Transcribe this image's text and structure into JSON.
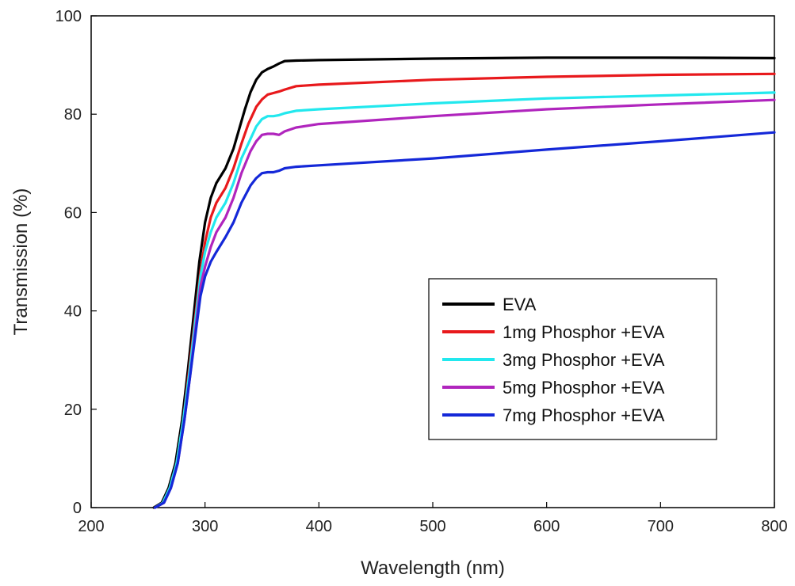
{
  "chart_data": {
    "type": "line",
    "xlabel": "Wavelength (nm)",
    "ylabel": "Transmission (%)",
    "xlim": [
      200,
      800
    ],
    "ylim": [
      0,
      100
    ],
    "xticks": [
      "200",
      "300",
      "400",
      "500",
      "600",
      "700",
      "800"
    ],
    "yticks": [
      "0",
      "20",
      "40",
      "60",
      "80",
      "100"
    ],
    "grid": false,
    "legend_position": "center-right",
    "series": [
      {
        "name": "EVA",
        "color": "#000000",
        "points": [
          [
            255,
            0
          ],
          [
            262,
            1
          ],
          [
            268,
            4
          ],
          [
            274,
            9
          ],
          [
            280,
            18
          ],
          [
            285,
            28
          ],
          [
            290,
            39
          ],
          [
            295,
            50
          ],
          [
            300,
            58
          ],
          [
            305,
            63
          ],
          [
            310,
            66
          ],
          [
            318,
            69
          ],
          [
            325,
            73
          ],
          [
            330,
            77
          ],
          [
            335,
            81
          ],
          [
            340,
            84.5
          ],
          [
            345,
            87
          ],
          [
            350,
            88.5
          ],
          [
            355,
            89.2
          ],
          [
            360,
            89.7
          ],
          [
            365,
            90.3
          ],
          [
            370,
            90.8
          ],
          [
            380,
            90.9
          ],
          [
            400,
            91
          ],
          [
            500,
            91.3
          ],
          [
            600,
            91.5
          ],
          [
            700,
            91.5
          ],
          [
            800,
            91.4
          ]
        ]
      },
      {
        "name": "1mg Phosphor +EVA",
        "color": "#e8191c",
        "points": [
          [
            256,
            0
          ],
          [
            263,
            1
          ],
          [
            269,
            4
          ],
          [
            275,
            9
          ],
          [
            281,
            18
          ],
          [
            286,
            28
          ],
          [
            291,
            38
          ],
          [
            296,
            48
          ],
          [
            300,
            54
          ],
          [
            305,
            59
          ],
          [
            310,
            62
          ],
          [
            318,
            65
          ],
          [
            325,
            69
          ],
          [
            332,
            74
          ],
          [
            338,
            78
          ],
          [
            345,
            81.5
          ],
          [
            350,
            83
          ],
          [
            355,
            84
          ],
          [
            360,
            84.3
          ],
          [
            365,
            84.6
          ],
          [
            370,
            85
          ],
          [
            380,
            85.7
          ],
          [
            400,
            86
          ],
          [
            500,
            87
          ],
          [
            600,
            87.6
          ],
          [
            700,
            88
          ],
          [
            800,
            88.2
          ]
        ]
      },
      {
        "name": "3mg Phosphor +EVA",
        "color": "#22e8ee",
        "points": [
          [
            256,
            0
          ],
          [
            263,
            1
          ],
          [
            269,
            4
          ],
          [
            275,
            9
          ],
          [
            281,
            18
          ],
          [
            286,
            27
          ],
          [
            291,
            37
          ],
          [
            296,
            47
          ],
          [
            300,
            52
          ],
          [
            305,
            56
          ],
          [
            310,
            59
          ],
          [
            318,
            62
          ],
          [
            325,
            66
          ],
          [
            332,
            71
          ],
          [
            340,
            75
          ],
          [
            345,
            77.5
          ],
          [
            350,
            79
          ],
          [
            355,
            79.6
          ],
          [
            360,
            79.6
          ],
          [
            365,
            79.8
          ],
          [
            370,
            80.2
          ],
          [
            380,
            80.7
          ],
          [
            400,
            81
          ],
          [
            500,
            82.2
          ],
          [
            600,
            83.2
          ],
          [
            700,
            83.8
          ],
          [
            800,
            84.4
          ]
        ]
      },
      {
        "name": "5mg Phosphor +EVA",
        "color": "#b025bd",
        "points": [
          [
            256,
            0
          ],
          [
            264,
            1
          ],
          [
            270,
            4
          ],
          [
            276,
            9
          ],
          [
            282,
            18
          ],
          [
            287,
            27
          ],
          [
            292,
            37
          ],
          [
            296,
            45
          ],
          [
            300,
            49
          ],
          [
            305,
            53
          ],
          [
            310,
            56
          ],
          [
            318,
            59
          ],
          [
            325,
            63
          ],
          [
            332,
            68
          ],
          [
            340,
            72.5
          ],
          [
            345,
            74.5
          ],
          [
            350,
            75.8
          ],
          [
            355,
            76
          ],
          [
            360,
            76
          ],
          [
            365,
            75.8
          ],
          [
            370,
            76.5
          ],
          [
            380,
            77.3
          ],
          [
            400,
            78
          ],
          [
            500,
            79.6
          ],
          [
            600,
            81
          ],
          [
            700,
            82
          ],
          [
            800,
            82.9
          ]
        ]
      },
      {
        "name": "7mg Phosphor +EVA",
        "color": "#1428d8",
        "points": [
          [
            256,
            0
          ],
          [
            264,
            1
          ],
          [
            270,
            4
          ],
          [
            276,
            9
          ],
          [
            282,
            18
          ],
          [
            287,
            27
          ],
          [
            292,
            36
          ],
          [
            296,
            43
          ],
          [
            300,
            47
          ],
          [
            305,
            50
          ],
          [
            310,
            52
          ],
          [
            318,
            55
          ],
          [
            325,
            58
          ],
          [
            332,
            62
          ],
          [
            340,
            65.5
          ],
          [
            345,
            67
          ],
          [
            350,
            68
          ],
          [
            355,
            68.2
          ],
          [
            360,
            68.2
          ],
          [
            365,
            68.5
          ],
          [
            370,
            69
          ],
          [
            380,
            69.3
          ],
          [
            400,
            69.6
          ],
          [
            500,
            71
          ],
          [
            600,
            72.8
          ],
          [
            700,
            74.5
          ],
          [
            800,
            76.3
          ]
        ]
      }
    ]
  }
}
